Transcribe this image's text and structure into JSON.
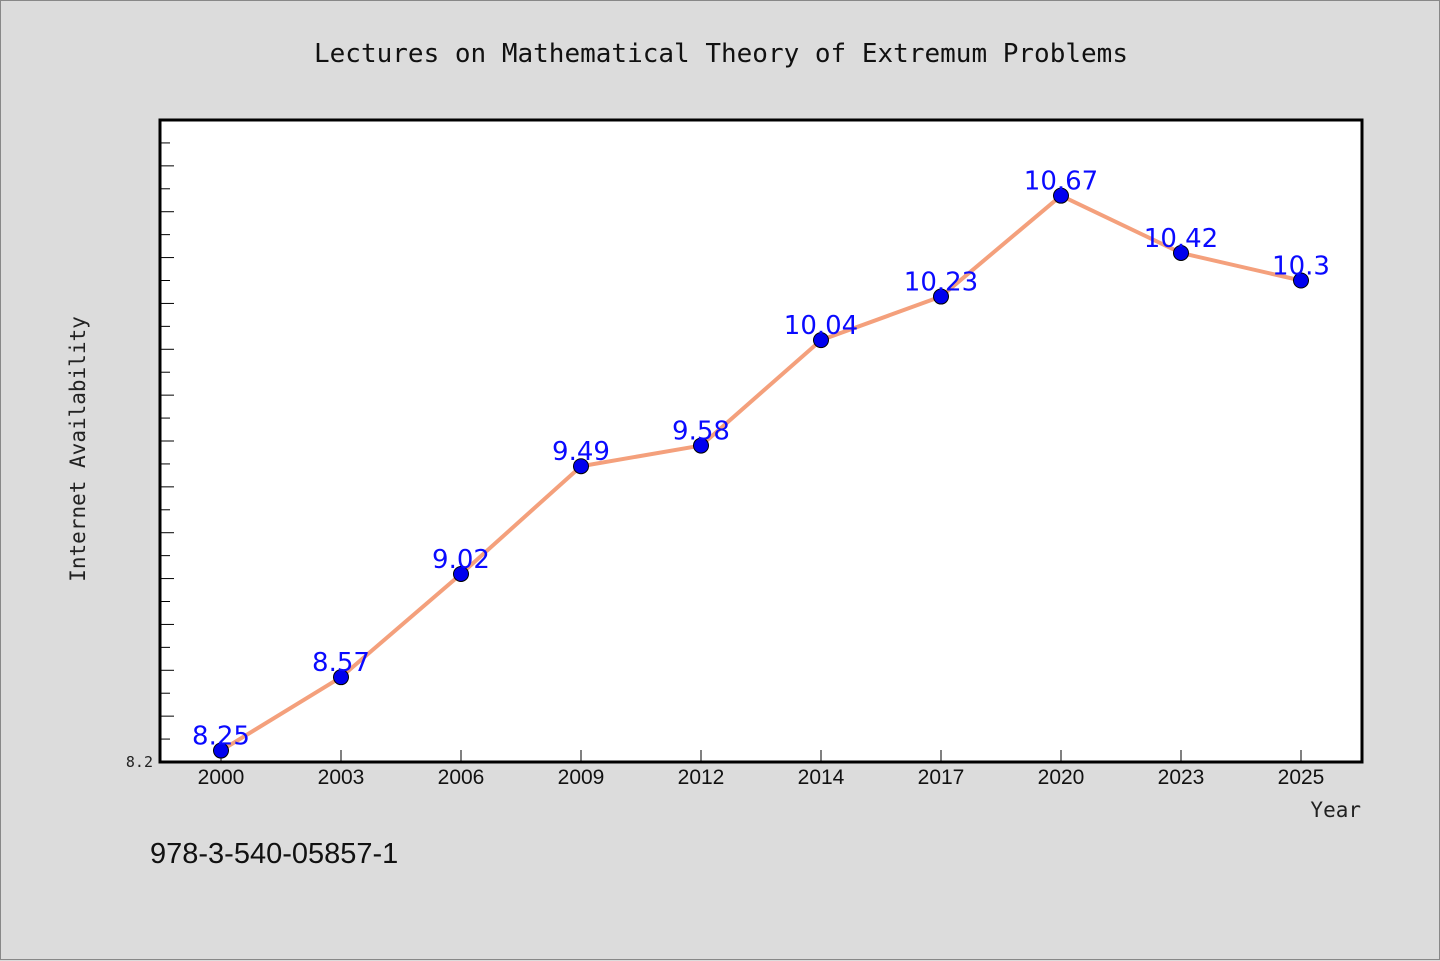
{
  "chart_data": {
    "type": "line",
    "title": "Lectures on Mathematical Theory of Extremum Problems",
    "xlabel": "Year",
    "ylabel": "Internet Availability",
    "categories": [
      "2000",
      "2003",
      "2006",
      "2009",
      "2012",
      "2014",
      "2017",
      "2020",
      "2023",
      "2025"
    ],
    "series": [
      {
        "values": [
          8.25,
          8.57,
          9.02,
          9.49,
          9.58,
          10.04,
          10.23,
          10.67,
          10.42,
          10.3
        ],
        "labels": [
          "8.25",
          "8.57",
          "9.02",
          "9.49",
          "9.58",
          "10.04",
          "10.23",
          "10.67",
          "10.42",
          "10.3"
        ],
        "line_color": "#f4a07c",
        "marker_color": "#0000ee"
      }
    ],
    "ylim": [
      8.2,
      11.0
    ],
    "ytick_labels": [
      "8.2"
    ],
    "grid": false,
    "legend": "none",
    "background": "#dcdcdc",
    "plot_background": "#ffffff"
  },
  "footnote": "978-3-540-05857-1"
}
